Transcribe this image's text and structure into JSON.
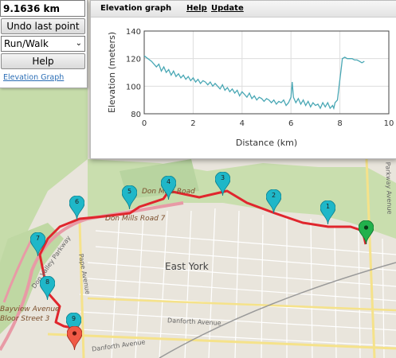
{
  "controls": {
    "distance": "9.1636 km",
    "undo_label": "Undo last point",
    "mode_value": "Run/Walk",
    "help_label": "Help",
    "elevation_link": "Elevation Graph"
  },
  "graph_panel": {
    "title": "Elevation graph",
    "help_link": "Help",
    "update_link": "Update"
  },
  "chart_data": {
    "type": "line",
    "xlabel": "Distance (km)",
    "ylabel": "Elevation (meters)",
    "xlim": [
      0,
      10
    ],
    "ylim": [
      80,
      140
    ],
    "xticks": [
      "0",
      "2",
      "4",
      "6",
      "8",
      "10"
    ],
    "yticks": [
      "80",
      "100",
      "120",
      "140"
    ],
    "line_color": "#4aa8b5",
    "grid": true,
    "series": [
      {
        "x": [
          0,
          0.15,
          0.3,
          0.5,
          0.6,
          0.7,
          0.8,
          0.9,
          1.0,
          1.1,
          1.2,
          1.3,
          1.4,
          1.5,
          1.6,
          1.7,
          1.8,
          1.9,
          2.0,
          2.1,
          2.2,
          2.3,
          2.4,
          2.5,
          2.6,
          2.7,
          2.8,
          2.9,
          3.0,
          3.1,
          3.2,
          3.3,
          3.4,
          3.5,
          3.6,
          3.7,
          3.8,
          3.9,
          4.0,
          4.1,
          4.2,
          4.3,
          4.4,
          4.5,
          4.6,
          4.7,
          4.8,
          4.9,
          5.0,
          5.1,
          5.2,
          5.3,
          5.4,
          5.5,
          5.6,
          5.7,
          5.8,
          5.9,
          6.0,
          6.05,
          6.1,
          6.2,
          6.3,
          6.4,
          6.5,
          6.6,
          6.7,
          6.8,
          6.9,
          7.0,
          7.1,
          7.2,
          7.3,
          7.4,
          7.5,
          7.6,
          7.7,
          7.75,
          7.8,
          7.9,
          8.0,
          8.05,
          8.1,
          8.2,
          8.3,
          8.4,
          8.5,
          8.6,
          8.7,
          8.8,
          8.9,
          9.0
        ],
        "y": [
          122,
          120,
          118,
          114,
          116,
          111,
          114,
          110,
          112,
          108,
          111,
          107,
          109,
          106,
          108,
          105,
          107,
          104,
          106,
          103,
          105,
          102,
          104,
          103,
          101,
          103,
          100,
          102,
          100,
          98,
          101,
          97,
          99,
          96,
          98,
          95,
          97,
          93,
          96,
          94,
          92,
          95,
          91,
          93,
          90,
          92,
          91,
          89,
          91,
          90,
          88,
          90,
          87,
          89,
          88,
          90,
          86,
          88,
          92,
          103,
          92,
          88,
          91,
          87,
          90,
          86,
          89,
          85,
          88,
          86,
          87,
          84,
          88,
          85,
          88,
          84,
          86,
          84,
          88,
          90,
          105,
          112,
          120,
          121,
          120,
          120,
          120,
          119,
          119,
          118,
          117,
          118
        ]
      }
    ]
  },
  "map": {
    "place_labels": [
      "East York",
      "Don Mills Road",
      "Don Mills Road 7",
      "Bayview Avenue",
      "Bloor Street 3",
      "Don Valley Parkway",
      "Pape Avenue",
      "Danforth Avenue",
      "Danforth Avenue",
      "Parkway Avenue"
    ],
    "route_color": "#e0262d",
    "markers": [
      {
        "label": "1",
        "color": "#1fb7c8"
      },
      {
        "label": "2",
        "color": "#1fb7c8"
      },
      {
        "label": "3",
        "color": "#1fb7c8"
      },
      {
        "label": "4",
        "color": "#1fb7c8"
      },
      {
        "label": "5",
        "color": "#1fb7c8"
      },
      {
        "label": "6",
        "color": "#1fb7c8"
      },
      {
        "label": "7",
        "color": "#1fb7c8"
      },
      {
        "label": "8",
        "color": "#1fb7c8"
      },
      {
        "label": "9",
        "color": "#1fb7c8"
      },
      {
        "label": "",
        "color": "#22b14c"
      },
      {
        "label": "",
        "color": "#f05a46"
      }
    ]
  }
}
